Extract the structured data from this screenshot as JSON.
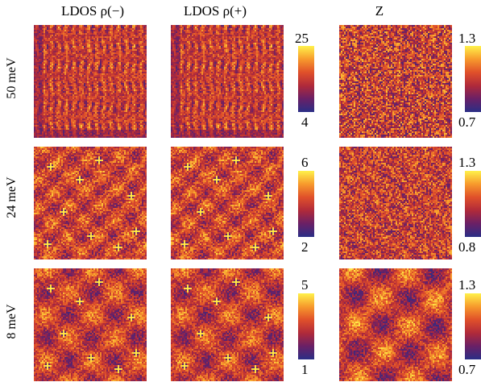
{
  "columns": [
    "LDOS ρ(−)",
    "LDOS ρ(+)",
    "Z"
  ],
  "rows": [
    {
      "label": "50 meV",
      "ldos_scale": {
        "max": "25",
        "min": "4"
      },
      "z_scale": {
        "max": "1.3",
        "min": "0.7"
      }
    },
    {
      "label": "24 meV",
      "ldos_scale": {
        "max": "6",
        "min": "2"
      },
      "z_scale": {
        "max": "1.3",
        "min": "0.8"
      }
    },
    {
      "label": "8 meV",
      "ldos_scale": {
        "max": "5",
        "min": "1"
      },
      "z_scale": {
        "max": "1.3",
        "min": "0.7"
      }
    }
  ],
  "colormap": [
    "#2a2e86",
    "#6a2066",
    "#b02a3a",
    "#e0502a",
    "#f79a2c",
    "#fff24a"
  ]
}
